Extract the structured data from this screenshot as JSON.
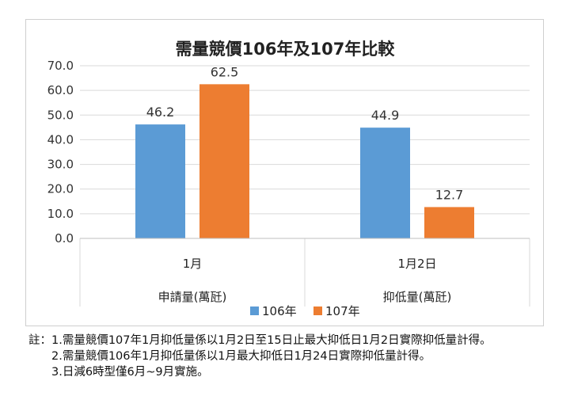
{
  "chart_data": {
    "type": "bar",
    "title": "需量競價106年及107年比較",
    "groups": [
      {
        "category": "1月",
        "group_label": "申請量(萬瓩)"
      },
      {
        "category": "1月2日",
        "group_label": "抑低量(萬瓩)"
      }
    ],
    "series": [
      {
        "name": "106年",
        "color": "#5b9bd5",
        "values": [
          46.2,
          44.9
        ],
        "labels": [
          "46.2",
          "44.9"
        ]
      },
      {
        "name": "107年",
        "color": "#ed7d31",
        "values": [
          62.5,
          12.7
        ],
        "labels": [
          "62.5",
          "12.7"
        ]
      }
    ],
    "ylim": [
      0,
      70
    ],
    "yticks": [
      "0.0",
      "10.0",
      "20.0",
      "30.0",
      "40.0",
      "50.0",
      "60.0",
      "70.0"
    ],
    "grid": true,
    "legend_position": "bottom"
  },
  "notes": {
    "prefix": "註：",
    "lines": [
      "1.需量競價107年1月抑低量係以1月2日至15日止最大抑低日1月2日實際抑低量計得。",
      "2.需量競價106年1月抑低量係以1月最大抑低日1月24日實際抑低量計得。",
      "3.日減6時型僅6月~9月實施。"
    ]
  }
}
